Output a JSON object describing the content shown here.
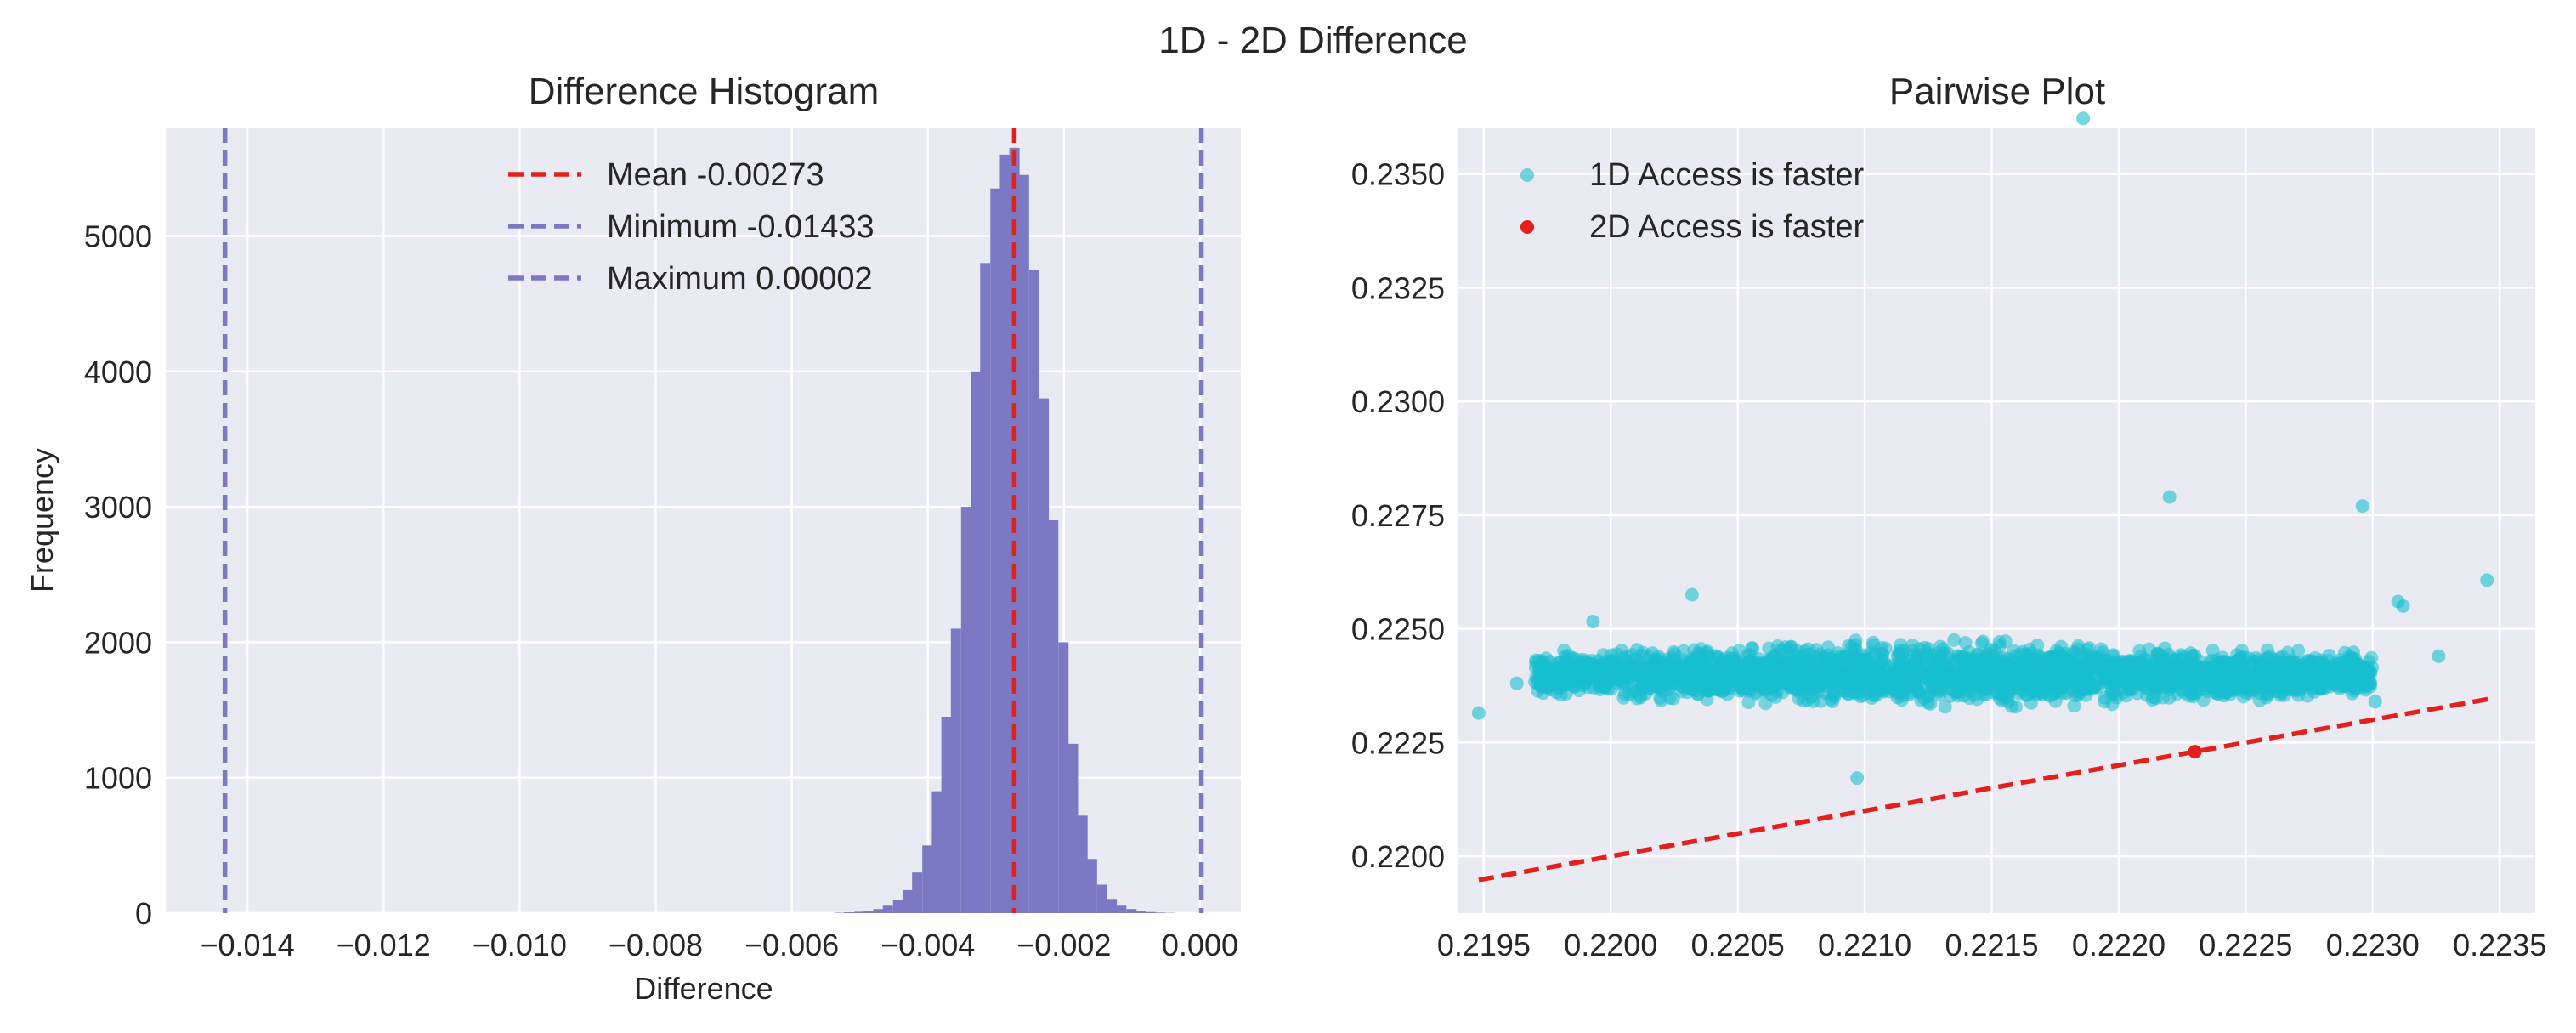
{
  "figure": {
    "title": "1D - 2D Difference"
  },
  "chart_data": [
    {
      "type": "bar",
      "title": "Difference Histogram",
      "xlabel": "Difference",
      "ylabel": "Frequency",
      "xlim": [
        -0.0152,
        0.0006
      ],
      "ylim": [
        0,
        5800
      ],
      "xticks": [
        -0.014,
        -0.012,
        -0.01,
        -0.008,
        -0.006,
        -0.004,
        -0.002,
        0.0
      ],
      "xtick_labels": [
        "−0.014",
        "−0.012",
        "−0.010",
        "−0.008",
        "−0.006",
        "−0.004",
        "−0.002",
        "0.000"
      ],
      "yticks": [
        0,
        1000,
        2000,
        3000,
        4000,
        5000
      ],
      "ytick_labels": [
        "0",
        "1000",
        "2000",
        "3000",
        "4000",
        "5000"
      ],
      "bin_width": 0.000143,
      "bars": {
        "x": [
          -0.0053,
          -0.00516,
          -0.00501,
          -0.00487,
          -0.00473,
          -0.00459,
          -0.00444,
          -0.0043,
          -0.00416,
          -0.00401,
          -0.00387,
          -0.00373,
          -0.00359,
          -0.00344,
          -0.0033,
          -0.00316,
          -0.00301,
          -0.00287,
          -0.00273,
          -0.00259,
          -0.00244,
          -0.0023,
          -0.00216,
          -0.00201,
          -0.00187,
          -0.00173,
          -0.00159,
          -0.00144,
          -0.0013,
          -0.00116,
          -0.00101,
          -0.00087,
          -0.00073,
          -0.00059,
          -0.00044
        ],
        "values": [
          3,
          6,
          10,
          18,
          30,
          55,
          95,
          170,
          300,
          500,
          900,
          1450,
          2100,
          3000,
          4000,
          4800,
          5350,
          5600,
          5650,
          5450,
          4750,
          3800,
          2900,
          2000,
          1250,
          720,
          400,
          210,
          105,
          55,
          30,
          15,
          8,
          4,
          2
        ]
      },
      "color": "#7b78c4",
      "vlines": [
        {
          "value": -0.00273,
          "color": "#e3201c",
          "label": "Mean -0.00273"
        },
        {
          "value": -0.01433,
          "color": "#7b78c4",
          "label": "Minimum -0.01433"
        },
        {
          "value": 2e-05,
          "color": "#7b78c4",
          "label": "Maximum 0.00002"
        }
      ],
      "legend_position": "top-center"
    },
    {
      "type": "scatter",
      "title": "Pairwise Plot",
      "xlabel": "",
      "ylabel": "",
      "xlim": [
        0.2194,
        0.22364
      ],
      "ylim": [
        0.21875,
        0.23602
      ],
      "xticks": [
        0.2195,
        0.22,
        0.2205,
        0.221,
        0.2215,
        0.222,
        0.2225,
        0.223,
        0.2235
      ],
      "xtick_labels": [
        "0.2195",
        "0.2200",
        "0.2205",
        "0.2210",
        "0.2215",
        "0.2220",
        "0.2225",
        "0.2230",
        "0.2235"
      ],
      "yticks": [
        0.22,
        0.2225,
        0.225,
        0.2275,
        0.23,
        0.2325,
        0.235
      ],
      "ytick_labels": [
        "0.2200",
        "0.2225",
        "0.2250",
        "0.2275",
        "0.2300",
        "0.2325",
        "0.2350"
      ],
      "series": [
        {
          "name": "1D Access is faster",
          "color": "#17becf",
          "cluster": {
            "x_range": [
              0.2197,
              0.223
            ],
            "y_center": 0.224,
            "y_half_height": 0.0009
          },
          "points": [
            [
              0.21948,
              0.22315
            ],
            [
              0.21993,
              0.22516
            ],
            [
              0.22032,
              0.22575
            ],
            [
              0.22097,
              0.22172
            ],
            [
              0.22186,
              0.23622
            ],
            [
              0.2222,
              0.2279
            ],
            [
              0.22296,
              0.2277
            ],
            [
              0.2231,
              0.2256
            ],
            [
              0.22312,
              0.2255
            ],
            [
              0.22345,
              0.22607
            ],
            [
              0.22326,
              0.2244
            ],
            [
              0.21963,
              0.2238
            ],
            [
              0.22301,
              0.2234
            ]
          ]
        },
        {
          "name": "2D Access is faster",
          "color": "#e3201c",
          "points": [
            [
              0.2223,
              0.2223
            ]
          ]
        }
      ],
      "reference_line": {
        "x": [
          0.21948,
          0.22346
        ],
        "y": [
          0.21948,
          0.22346
        ],
        "color": "#e3201c"
      },
      "legend_position": "top-left"
    }
  ]
}
